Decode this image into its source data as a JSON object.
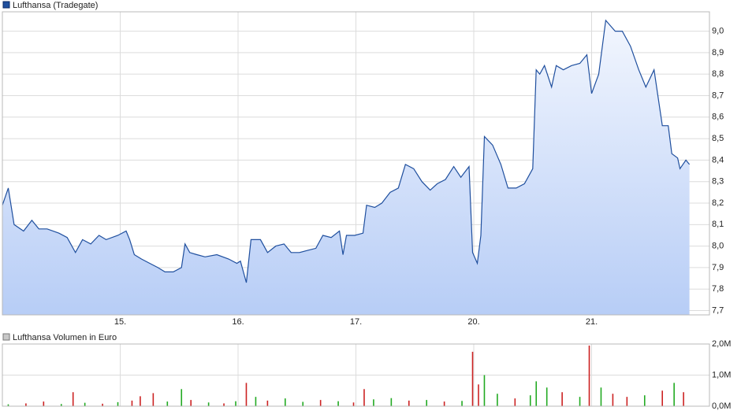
{
  "chart_data": [
    {
      "type": "area",
      "xlim": [
        0,
        6
      ],
      "xticks": [
        {
          "value": 1,
          "label": "15."
        },
        {
          "value": 2,
          "label": "16."
        },
        {
          "value": 3,
          "label": "17."
        },
        {
          "value": 4,
          "label": "20."
        },
        {
          "value": 5,
          "label": "21."
        }
      ],
      "ylim": [
        7.68,
        9.09
      ],
      "yticks": [
        {
          "value": 7.7,
          "label": "7,7"
        },
        {
          "value": 7.8,
          "label": "7,8"
        },
        {
          "value": 7.9,
          "label": "7,9"
        },
        {
          "value": 8.0,
          "label": "8,0"
        },
        {
          "value": 8.1,
          "label": "8,1"
        },
        {
          "value": 8.2,
          "label": "8,2"
        },
        {
          "value": 8.3,
          "label": "8,3"
        },
        {
          "value": 8.4,
          "label": "8,4"
        },
        {
          "value": 8.5,
          "label": "8,5"
        },
        {
          "value": 8.6,
          "label": "8,6"
        },
        {
          "value": 8.7,
          "label": "8,7"
        },
        {
          "value": 8.8,
          "label": "8,8"
        },
        {
          "value": 8.9,
          "label": "8,9"
        },
        {
          "value": 9.0,
          "label": "9,0"
        }
      ],
      "grid": true,
      "series": [
        {
          "name": "Lufthansa (Tradegate)",
          "color": "#1f4f9e",
          "x": [
            0.0,
            0.05,
            0.1,
            0.18,
            0.25,
            0.31,
            0.38,
            0.48,
            0.55,
            0.62,
            0.68,
            0.75,
            0.82,
            0.88,
            0.98,
            1.05,
            1.08,
            1.12,
            1.18,
            1.25,
            1.32,
            1.38,
            1.45,
            1.52,
            1.55,
            1.59,
            1.65,
            1.72,
            1.82,
            1.92,
            1.99,
            2.02,
            2.07,
            2.11,
            2.19,
            2.25,
            2.32,
            2.39,
            2.45,
            2.52,
            2.59,
            2.66,
            2.72,
            2.79,
            2.86,
            2.89,
            2.92,
            2.99,
            3.06,
            3.09,
            3.16,
            3.22,
            3.29,
            3.36,
            3.42,
            3.49,
            3.56,
            3.63,
            3.69,
            3.76,
            3.83,
            3.89,
            3.96,
            3.99,
            4.03,
            4.06,
            4.09,
            4.16,
            4.23,
            4.29,
            4.36,
            4.43,
            4.5,
            4.53,
            4.56,
            4.6,
            4.66,
            4.7,
            4.76,
            4.83,
            4.9,
            4.96,
            5.0,
            5.06,
            5.12,
            5.2,
            5.26,
            5.33,
            5.4,
            5.46,
            5.53,
            5.6,
            5.65,
            5.68,
            5.73,
            5.75,
            5.8,
            5.83
          ],
          "values": [
            8.19,
            8.27,
            8.1,
            8.07,
            8.12,
            8.08,
            8.08,
            8.06,
            8.04,
            7.97,
            8.03,
            8.01,
            8.05,
            8.03,
            8.05,
            8.07,
            8.03,
            7.96,
            7.94,
            7.92,
            7.9,
            7.88,
            7.88,
            7.9,
            8.01,
            7.97,
            7.96,
            7.95,
            7.96,
            7.94,
            7.92,
            7.93,
            7.83,
            8.03,
            8.03,
            7.97,
            8.0,
            8.01,
            7.97,
            7.97,
            7.98,
            7.99,
            8.05,
            8.04,
            8.07,
            7.96,
            8.05,
            8.05,
            8.06,
            8.19,
            8.18,
            8.2,
            8.25,
            8.27,
            8.38,
            8.36,
            8.3,
            8.26,
            8.29,
            8.31,
            8.37,
            8.32,
            8.37,
            7.97,
            7.92,
            8.05,
            8.51,
            8.47,
            8.38,
            8.27,
            8.27,
            8.29,
            8.36,
            8.82,
            8.8,
            8.84,
            8.74,
            8.84,
            8.82,
            8.84,
            8.85,
            8.89,
            8.71,
            8.8,
            9.05,
            9.0,
            9.0,
            8.93,
            8.82,
            8.74,
            8.82,
            8.56,
            8.56,
            8.43,
            8.41,
            8.36,
            8.4,
            8.38
          ]
        }
      ]
    },
    {
      "type": "bar",
      "xlim": [
        0,
        6
      ],
      "ylim": [
        0,
        2000000
      ],
      "yticks": [
        {
          "value": 0,
          "label": "0,0M"
        },
        {
          "value": 1000000,
          "label": "1,0M"
        },
        {
          "value": 2000000,
          "label": "2,0M"
        }
      ],
      "grid": true,
      "series": [
        {
          "name": "Lufthansa Volumen in Euro",
          "color": "#c8c8c8",
          "x": [
            0.05,
            0.2,
            0.35,
            0.5,
            0.6,
            0.7,
            0.85,
            0.98,
            1.1,
            1.17,
            1.28,
            1.4,
            1.52,
            1.6,
            1.75,
            1.88,
            1.98,
            2.07,
            2.15,
            2.25,
            2.4,
            2.55,
            2.7,
            2.85,
            2.98,
            3.07,
            3.15,
            3.3,
            3.45,
            3.6,
            3.75,
            3.9,
            3.99,
            4.04,
            4.09,
            4.2,
            4.35,
            4.48,
            4.53,
            4.62,
            4.75,
            4.9,
            4.98,
            5.08,
            5.18,
            5.3,
            5.45,
            5.6,
            5.7,
            5.78
          ],
          "values": [
            60000,
            90000,
            150000,
            70000,
            450000,
            110000,
            80000,
            130000,
            180000,
            320000,
            420000,
            150000,
            550000,
            200000,
            120000,
            90000,
            160000,
            750000,
            300000,
            180000,
            250000,
            140000,
            200000,
            160000,
            120000,
            550000,
            220000,
            260000,
            180000,
            200000,
            150000,
            170000,
            1750000,
            700000,
            1000000,
            400000,
            250000,
            350000,
            800000,
            600000,
            450000,
            300000,
            1950000,
            600000,
            400000,
            300000,
            350000,
            500000,
            750000,
            450000
          ],
          "bar_colors": [
            "#22aa22",
            "#cc2222",
            "#cc2222",
            "#22aa22",
            "#cc2222",
            "#22aa22",
            "#cc2222",
            "#22aa22",
            "#cc2222",
            "#cc2222",
            "#cc2222",
            "#22aa22",
            "#22aa22",
            "#cc2222",
            "#22aa22",
            "#cc2222",
            "#22aa22",
            "#cc2222",
            "#22aa22",
            "#cc2222",
            "#22aa22",
            "#22aa22",
            "#cc2222",
            "#22aa22",
            "#cc2222",
            "#cc2222",
            "#22aa22",
            "#22aa22",
            "#cc2222",
            "#22aa22",
            "#cc2222",
            "#22aa22",
            "#cc2222",
            "#cc2222",
            "#22aa22",
            "#22aa22",
            "#cc2222",
            "#22aa22",
            "#22aa22",
            "#22aa22",
            "#cc2222",
            "#22aa22",
            "#cc2222",
            "#22aa22",
            "#cc2222",
            "#cc2222",
            "#22aa22",
            "#cc2222",
            "#22aa22",
            "#cc2222"
          ]
        }
      ]
    }
  ]
}
